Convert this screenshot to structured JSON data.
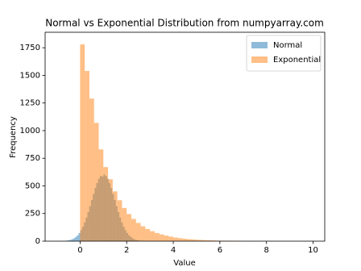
{
  "chart_data": {
    "type": "histogram",
    "title": "Normal vs Exponential Distribution from numpyarray.com",
    "x_label": "Value",
    "y_label": "Frequency",
    "series": [
      {
        "name": "Normal",
        "color": "#1f77b4",
        "bins": [
          -0.9,
          -0.824,
          -0.748,
          -0.672,
          -0.596,
          -0.52,
          -0.444,
          -0.368,
          -0.292,
          -0.216,
          -0.14,
          -0.064,
          0.012,
          0.088,
          0.164,
          0.24,
          0.316,
          0.392,
          0.468,
          0.544,
          0.62,
          0.696,
          0.772,
          0.848,
          0.924,
          1.0,
          1.076,
          1.152,
          1.228,
          1.304,
          1.38,
          1.456,
          1.532,
          1.608,
          1.684,
          1.76,
          1.836,
          1.912,
          1.988,
          2.064,
          2.14,
          2.216,
          2.292,
          2.368,
          2.444,
          2.52,
          2.596,
          2.672,
          2.748,
          2.824,
          2.9
        ],
        "values": [
          1,
          1,
          2,
          3,
          5,
          8,
          12,
          18,
          26,
          38,
          53,
          74,
          100,
          131,
          170,
          214,
          263,
          316,
          372,
          427,
          480,
          526,
          564,
          590,
          585,
          604,
          590,
          564,
          526,
          480,
          427,
          372,
          316,
          263,
          214,
          170,
          131,
          100,
          74,
          53,
          38,
          26,
          18,
          12,
          8,
          5,
          3,
          2,
          1,
          1
        ]
      },
      {
        "name": "Exponential",
        "color": "#ff7f0e",
        "bins": [
          0,
          0.2,
          0.4,
          0.6,
          0.8,
          1,
          1.2,
          1.4,
          1.6,
          1.8,
          2,
          2.2,
          2.4,
          2.6,
          2.8,
          3,
          3.2,
          3.4,
          3.6,
          3.8,
          4,
          4.2,
          4.4,
          4.6,
          4.8,
          5,
          5.2,
          5.4,
          5.6,
          5.8,
          6,
          6.2,
          6.4,
          6.6,
          6.8,
          7,
          7.2,
          7.4,
          7.6,
          7.8,
          8,
          8.2,
          8.4,
          8.6,
          8.8,
          9,
          9.2,
          9.4,
          9.6,
          9.8,
          10
        ],
        "values": [
          1780,
          1540,
          1290,
          1070,
          830,
          670,
          560,
          450,
          370,
          300,
          245,
          201,
          165,
          135,
          110,
          90,
          74,
          61,
          50,
          41,
          33,
          27,
          22,
          18,
          15,
          12,
          10,
          8,
          7,
          5,
          4,
          3,
          3,
          2,
          2,
          1,
          1,
          1,
          1,
          0,
          1,
          0,
          0,
          0,
          0,
          0,
          0,
          0,
          0,
          1
        ]
      }
    ],
    "xlim": [
      -1.5,
      10.5
    ],
    "xticks": [
      0,
      2,
      4,
      6,
      8,
      10
    ],
    "ylim": [
      0,
      1890
    ],
    "yticks": [
      0,
      250,
      500,
      750,
      1000,
      1250,
      1500,
      1750
    ],
    "legend": "upper right"
  }
}
